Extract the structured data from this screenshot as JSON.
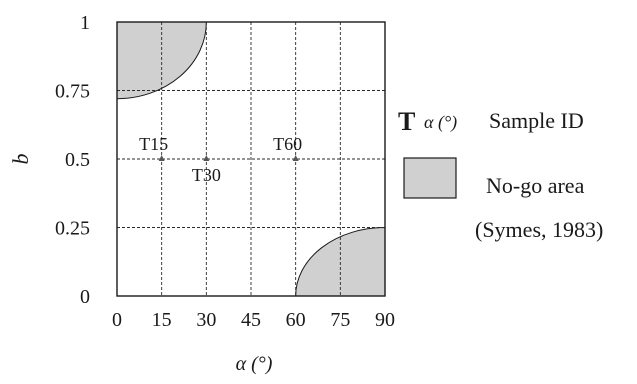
{
  "chart_data": {
    "type": "scatter",
    "title": "",
    "xlabel": "α (°)",
    "ylabel": "b",
    "xlim": [
      0,
      90
    ],
    "ylim": [
      0,
      1
    ],
    "x_ticks": [
      "0",
      "15",
      "30",
      "45",
      "60",
      "75",
      "90"
    ],
    "y_ticks": [
      "0",
      "0.25",
      "0.5",
      "0.75",
      "1"
    ],
    "grid": true,
    "points": [
      {
        "label": "T15",
        "x": 15,
        "y": 0.5
      },
      {
        "label": "T30",
        "x": 30,
        "y": 0.5
      },
      {
        "label": "T60",
        "x": 60,
        "y": 0.5
      }
    ],
    "no_go_regions": [
      {
        "corner": "top-left",
        "from_x": 30,
        "to_y": 0.72
      },
      {
        "corner": "bottom-right",
        "from_x": 60,
        "to_y": 0.25
      }
    ],
    "legend": {
      "placement": "right",
      "marker_symbol": "T",
      "marker_suffix": "α (°)",
      "marker_label": "Sample ID",
      "region_label_line1": "No-go area",
      "region_label_line2": "(Symes, 1983)"
    },
    "colors": {
      "region_fill": "#d0d0d0",
      "frame": "#1a1a1a",
      "grid": "#2a2a2a",
      "marker": "#555555"
    }
  }
}
